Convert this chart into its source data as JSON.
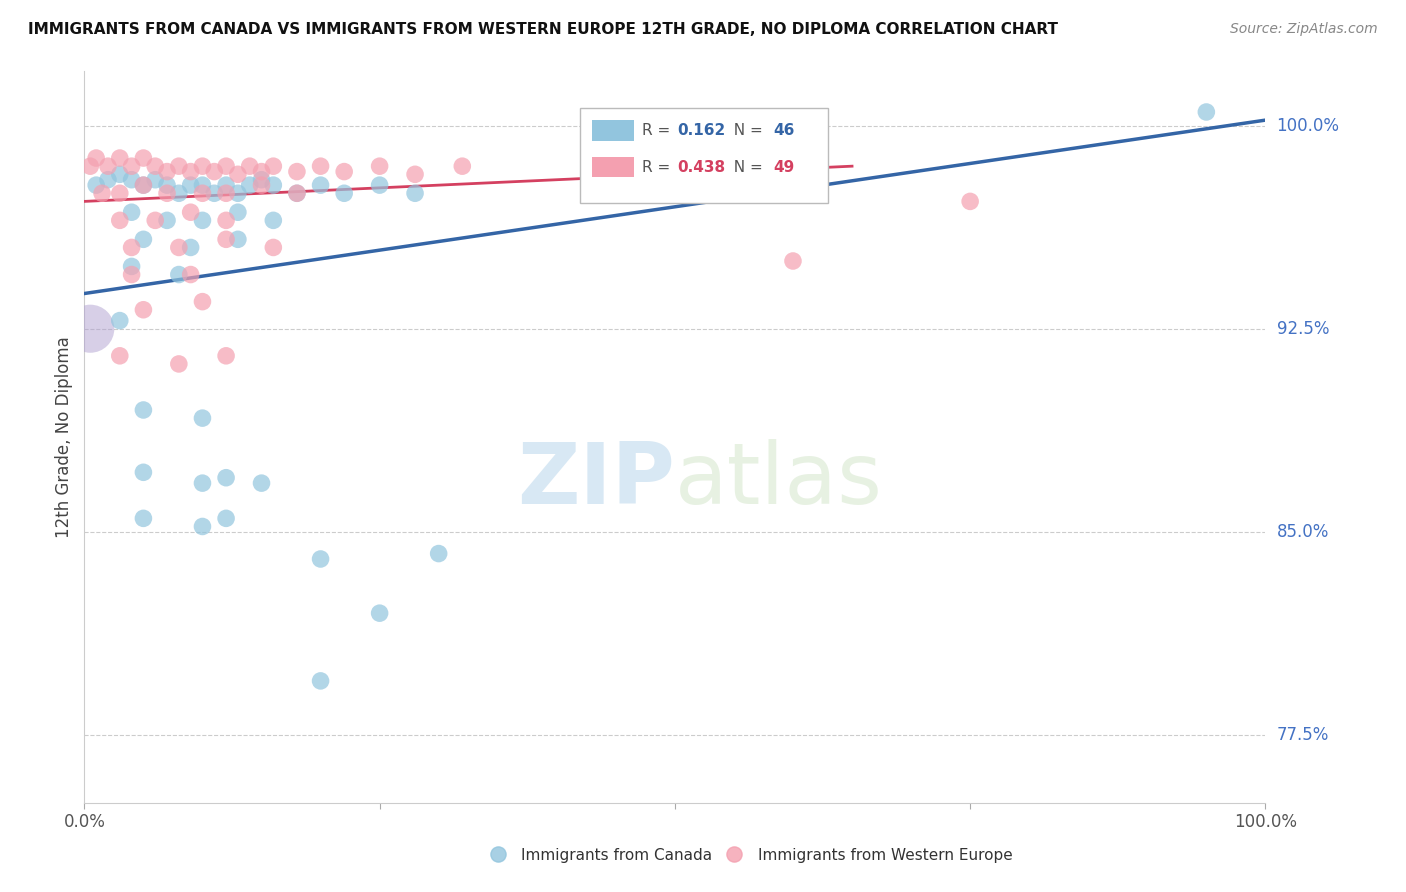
{
  "title": "IMMIGRANTS FROM CANADA VS IMMIGRANTS FROM WESTERN EUROPE 12TH GRADE, NO DIPLOMA CORRELATION CHART",
  "source": "Source: ZipAtlas.com",
  "ylabel": "12th Grade, No Diploma",
  "legend1_r": "0.162",
  "legend1_n": "46",
  "legend2_r": "0.438",
  "legend2_n": "49",
  "blue_color": "#92c5de",
  "pink_color": "#f4a0b0",
  "blue_line_color": "#3465a6",
  "pink_line_color": "#d44060",
  "watermark_color": "#d8e8f0",
  "canada_points": [
    [
      1.0,
      97.8
    ],
    [
      2.0,
      98.0
    ],
    [
      3.0,
      98.2
    ],
    [
      4.0,
      98.0
    ],
    [
      5.0,
      97.8
    ],
    [
      6.0,
      98.0
    ],
    [
      7.0,
      97.8
    ],
    [
      8.0,
      97.5
    ],
    [
      9.0,
      97.8
    ],
    [
      10.0,
      97.8
    ],
    [
      11.0,
      97.5
    ],
    [
      12.0,
      97.8
    ],
    [
      13.0,
      97.5
    ],
    [
      14.0,
      97.8
    ],
    [
      15.0,
      98.0
    ],
    [
      16.0,
      97.8
    ],
    [
      18.0,
      97.5
    ],
    [
      20.0,
      97.8
    ],
    [
      22.0,
      97.5
    ],
    [
      25.0,
      97.8
    ],
    [
      28.0,
      97.5
    ],
    [
      4.0,
      96.8
    ],
    [
      7.0,
      96.5
    ],
    [
      10.0,
      96.5
    ],
    [
      13.0,
      96.8
    ],
    [
      16.0,
      96.5
    ],
    [
      5.0,
      95.8
    ],
    [
      9.0,
      95.5
    ],
    [
      13.0,
      95.8
    ],
    [
      4.0,
      94.8
    ],
    [
      8.0,
      94.5
    ],
    [
      3.0,
      92.8
    ],
    [
      5.0,
      89.5
    ],
    [
      10.0,
      89.2
    ],
    [
      5.0,
      87.2
    ],
    [
      10.0,
      86.8
    ],
    [
      12.0,
      87.0
    ],
    [
      15.0,
      86.8
    ],
    [
      5.0,
      85.5
    ],
    [
      10.0,
      85.2
    ],
    [
      12.0,
      85.5
    ],
    [
      20.0,
      84.0
    ],
    [
      30.0,
      84.2
    ],
    [
      25.0,
      82.0
    ],
    [
      20.0,
      79.5
    ],
    [
      95.0,
      100.5
    ]
  ],
  "canada_sizes": [
    150,
    150,
    150,
    150,
    150,
    150,
    150,
    150,
    150,
    150,
    150,
    150,
    150,
    150,
    150,
    150,
    150,
    150,
    150,
    150,
    150,
    150,
    150,
    150,
    150,
    150,
    150,
    150,
    150,
    150,
    150,
    150,
    150,
    150,
    150,
    150,
    150,
    150,
    150,
    150,
    150,
    150,
    150,
    150,
    150,
    150
  ],
  "western_europe_points": [
    [
      0.5,
      98.5
    ],
    [
      1.0,
      98.8
    ],
    [
      2.0,
      98.5
    ],
    [
      3.0,
      98.8
    ],
    [
      4.0,
      98.5
    ],
    [
      5.0,
      98.8
    ],
    [
      6.0,
      98.5
    ],
    [
      7.0,
      98.3
    ],
    [
      8.0,
      98.5
    ],
    [
      9.0,
      98.3
    ],
    [
      10.0,
      98.5
    ],
    [
      11.0,
      98.3
    ],
    [
      12.0,
      98.5
    ],
    [
      13.0,
      98.2
    ],
    [
      14.0,
      98.5
    ],
    [
      15.0,
      98.3
    ],
    [
      16.0,
      98.5
    ],
    [
      18.0,
      98.3
    ],
    [
      20.0,
      98.5
    ],
    [
      22.0,
      98.3
    ],
    [
      25.0,
      98.5
    ],
    [
      28.0,
      98.2
    ],
    [
      32.0,
      98.5
    ],
    [
      1.5,
      97.5
    ],
    [
      3.0,
      97.5
    ],
    [
      5.0,
      97.8
    ],
    [
      7.0,
      97.5
    ],
    [
      10.0,
      97.5
    ],
    [
      12.0,
      97.5
    ],
    [
      15.0,
      97.8
    ],
    [
      18.0,
      97.5
    ],
    [
      3.0,
      96.5
    ],
    [
      6.0,
      96.5
    ],
    [
      9.0,
      96.8
    ],
    [
      12.0,
      96.5
    ],
    [
      4.0,
      95.5
    ],
    [
      8.0,
      95.5
    ],
    [
      12.0,
      95.8
    ],
    [
      16.0,
      95.5
    ],
    [
      4.0,
      94.5
    ],
    [
      9.0,
      94.5
    ],
    [
      5.0,
      93.2
    ],
    [
      10.0,
      93.5
    ],
    [
      60.0,
      95.0
    ],
    [
      75.0,
      97.2
    ],
    [
      3.0,
      91.5
    ],
    [
      8.0,
      91.2
    ],
    [
      12.0,
      91.5
    ]
  ],
  "large_purple_point": [
    0.5,
    92.5
  ],
  "large_purple_size": 1200,
  "large_purple_color": "#b0a0d0",
  "xlim": [
    0,
    100
  ],
  "ylim": [
    75,
    102
  ],
  "blue_line": {
    "x0": 0,
    "y0": 93.8,
    "x1": 100,
    "y1": 100.2
  },
  "pink_line": {
    "x0": 0,
    "y0": 97.2,
    "x1": 65,
    "y1": 98.5
  }
}
